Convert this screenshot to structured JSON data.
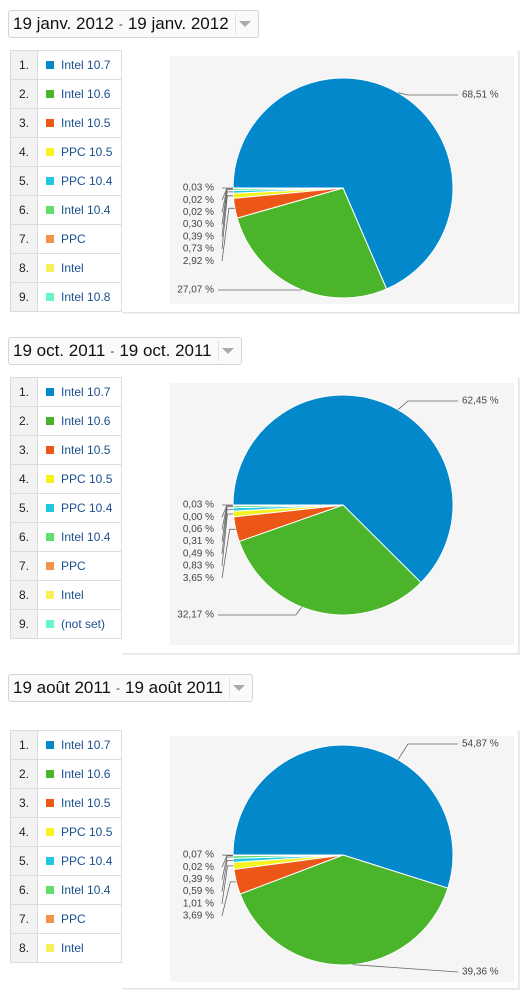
{
  "colors": [
    "#0388cc",
    "#4ab52a",
    "#ec5717",
    "#f5f21e",
    "#21c9e0",
    "#5ee06b",
    "#f7944a",
    "#f8f05a",
    "#66f5c8"
  ],
  "panels": [
    {
      "date_start": "19 janv. 2012",
      "date_sep": "-",
      "date_end": "19 janv. 2012",
      "legend": [
        {
          "num": "1.",
          "label": "Intel 10.7"
        },
        {
          "num": "2.",
          "label": "Intel 10.6"
        },
        {
          "num": "3.",
          "label": "Intel 10.5"
        },
        {
          "num": "4.",
          "label": "PPC 10.5"
        },
        {
          "num": "5.",
          "label": "PPC 10.4"
        },
        {
          "num": "6.",
          "label": "Intel 10.4"
        },
        {
          "num": "7.",
          "label": "PPC"
        },
        {
          "num": "8.",
          "label": "Intel"
        },
        {
          "num": "9.",
          "label": "Intel 10.8"
        }
      ]
    },
    {
      "date_start": "19 oct. 2011",
      "date_sep": "-",
      "date_end": "19 oct. 2011",
      "legend": [
        {
          "num": "1.",
          "label": "Intel 10.7"
        },
        {
          "num": "2.",
          "label": "Intel 10.6"
        },
        {
          "num": "3.",
          "label": "Intel 10.5"
        },
        {
          "num": "4.",
          "label": "PPC 10.5"
        },
        {
          "num": "5.",
          "label": "PPC 10.4"
        },
        {
          "num": "6.",
          "label": "Intel 10.4"
        },
        {
          "num": "7.",
          "label": "PPC"
        },
        {
          "num": "8.",
          "label": "Intel"
        },
        {
          "num": "9.",
          "label": "(not set)"
        }
      ]
    },
    {
      "date_start": "19 août 2011",
      "date_sep": "-",
      "date_end": "19 août 2011",
      "legend": [
        {
          "num": "1.",
          "label": "Intel 10.7"
        },
        {
          "num": "2.",
          "label": "Intel 10.6"
        },
        {
          "num": "3.",
          "label": "Intel 10.5"
        },
        {
          "num": "4.",
          "label": "PPC 10.5"
        },
        {
          "num": "5.",
          "label": "PPC 10.4"
        },
        {
          "num": "6.",
          "label": "Intel 10.4"
        },
        {
          "num": "7.",
          "label": "PPC"
        },
        {
          "num": "8.",
          "label": "Intel"
        }
      ]
    }
  ],
  "chart_data": [
    {
      "type": "pie",
      "categories": [
        "Intel 10.7",
        "Intel 10.6",
        "Intel 10.5",
        "PPC 10.5",
        "PPC 10.4",
        "Intel 10.4",
        "PPC",
        "Intel",
        "Intel 10.8"
      ],
      "values": [
        68.51,
        27.07,
        2.92,
        0.73,
        0.39,
        0.3,
        0.02,
        0.02,
        0.03
      ],
      "value_labels": [
        "68,51 %",
        "27,07 %",
        "2,92 %",
        "0,73 %",
        "0,39 %",
        "0,30 %",
        "0,02 %",
        "0,02 %",
        "0,03 %"
      ]
    },
    {
      "type": "pie",
      "categories": [
        "Intel 10.7",
        "Intel 10.6",
        "Intel 10.5",
        "PPC 10.5",
        "PPC 10.4",
        "Intel 10.4",
        "PPC",
        "Intel",
        "(not set)"
      ],
      "values": [
        62.45,
        32.17,
        3.65,
        0.83,
        0.49,
        0.31,
        0.06,
        0.0,
        0.03
      ],
      "value_labels": [
        "62,45 %",
        "32,17 %",
        "3,65 %",
        "0,83 %",
        "0,49 %",
        "0,31 %",
        "0,06 %",
        "0,00 %",
        "0,03 %"
      ]
    },
    {
      "type": "pie",
      "categories": [
        "Intel 10.7",
        "Intel 10.6",
        "Intel 10.5",
        "PPC 10.5",
        "PPC 10.4",
        "Intel 10.4",
        "PPC",
        "Intel"
      ],
      "values": [
        54.87,
        39.36,
        3.69,
        1.01,
        0.59,
        0.39,
        0.02,
        0.07
      ],
      "value_labels": [
        "54,87 %",
        "39,36 %",
        "3,69 %",
        "1,01 %",
        "0,59 %",
        "0,39 %",
        "0,02 %",
        "0,07 %"
      ]
    }
  ]
}
